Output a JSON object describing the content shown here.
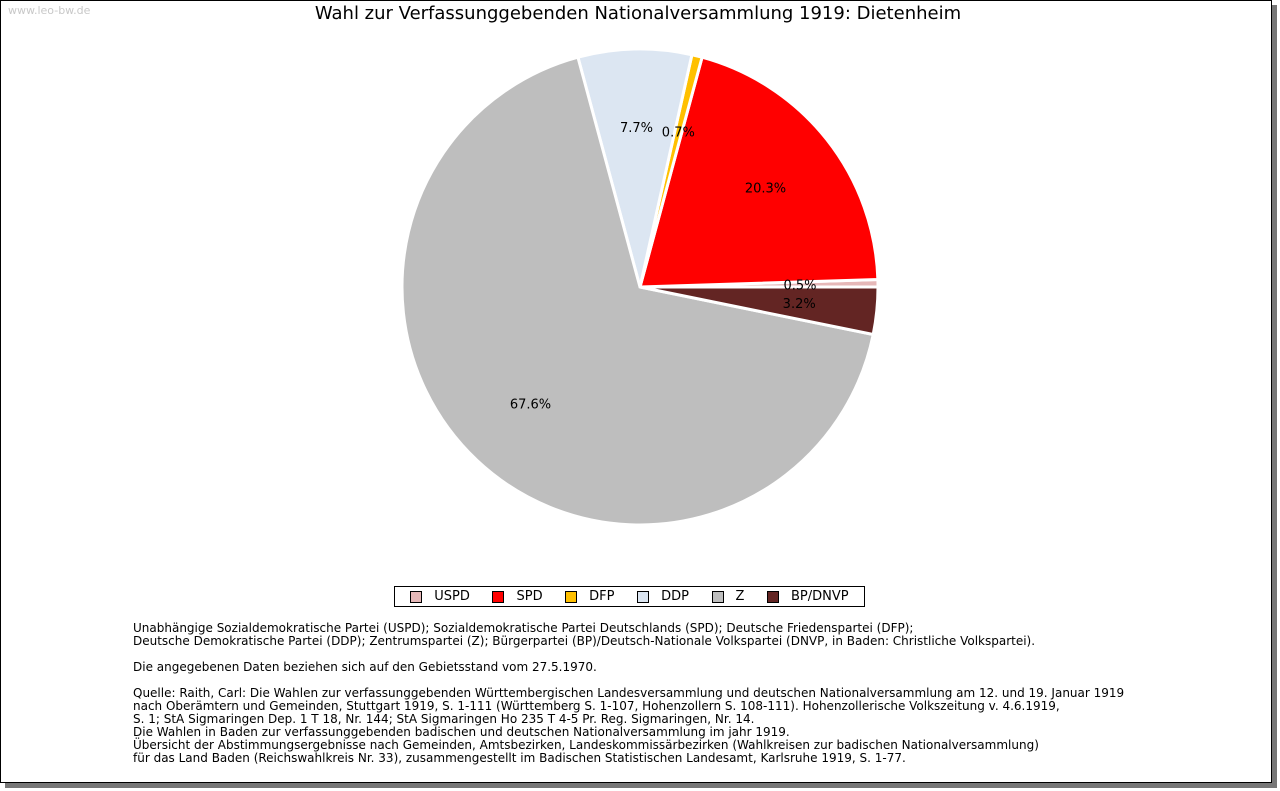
{
  "watermark": "www.leo-bw.de",
  "chart_data": {
    "type": "pie",
    "title": "Wahl zur Verfassunggebenden Nationalversammlung 1919: Dietenheim",
    "categories": [
      "USPD",
      "SPD",
      "DFP",
      "DDP",
      "Z",
      "BP/DNVP"
    ],
    "values": [
      0.5,
      20.3,
      0.7,
      7.7,
      67.6,
      3.2
    ],
    "labels": [
      "0.5%",
      "20.3%",
      "0.7%",
      "7.7%",
      "67.6%",
      "3.2%"
    ],
    "colors": [
      "#e6b8b8",
      "#ff0000",
      "#ffc000",
      "#dce6f2",
      "#bebebe",
      "#632523"
    ],
    "legend_position": "bottom"
  },
  "notes": {
    "parties": "Unabhängige Sozialdemokratische Partei (USPD); Sozialdemokratische Partei Deutschlands (SPD); Deutsche Friedenspartei (DFP);\nDeutsche Demokratische Partei (DDP); Zentrumspartei (Z); Bürgerpartei (BP)/Deutsch-Nationale Volkspartei (DNVP, in Baden: Christliche Volkspartei).",
    "territory": "Die angegebenen Daten beziehen sich auf den Gebietsstand vom 27.5.1970.",
    "source": "Quelle: Raith, Carl: Die Wahlen zur verfassunggebenden Württembergischen Landesversammlung und deutschen Nationalversammlung am 12. und 19. Januar 1919\nnach Oberämtern und Gemeinden, Stuttgart 1919, S. 1-111 (Württemberg S. 1-107, Hohenzollern S. 108-111). Hohenzollerische Volkszeitung v. 4.6.1919,\nS. 1; StA Sigmaringen Dep. 1 T 18, Nr. 144; StA Sigmaringen Ho 235 T 4-5 Pr. Reg. Sigmaringen, Nr. 14.\nDie Wahlen in Baden zur verfassunggebenden badischen und deutschen Nationalversammlung im jahr 1919.\nÜbersicht der Abstimmungsergebnisse nach Gemeinden, Amtsbezirken, Landeskommissärbezirken (Wahlkreisen zur badischen Nationalversammlung)\nfür das Land Baden (Reichswahlkreis Nr. 33), zusammengestellt im Badischen Statistischen Landesamt, Karlsruhe 1919, S. 1-77."
  }
}
